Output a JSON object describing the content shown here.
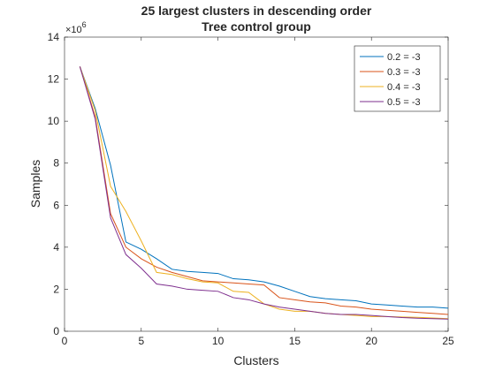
{
  "chart_data": {
    "type": "line",
    "title": "25 largest clusters in descending order",
    "subtitle": "Tree control group",
    "xlabel": "Clusters",
    "ylabel": "Samples",
    "exponent_label": "×10",
    "exponent_power": "6",
    "xlim": [
      0,
      25
    ],
    "ylim": [
      0,
      14
    ],
    "x_ticks": [
      "0",
      "5",
      "10",
      "15",
      "20",
      "25"
    ],
    "y_ticks": [
      "0",
      "2",
      "4",
      "6",
      "8",
      "10",
      "12",
      "14"
    ],
    "grid": false,
    "legend_position": "top-right",
    "x": [
      1,
      2,
      3,
      4,
      5,
      6,
      7,
      8,
      9,
      10,
      11,
      12,
      13,
      14,
      15,
      16,
      17,
      18,
      19,
      20,
      21,
      22,
      23,
      24,
      25
    ],
    "series": [
      {
        "name": "0.2 = -3",
        "color": "#0072BD",
        "values": [
          12.6,
          10.6,
          7.9,
          4.25,
          3.9,
          3.45,
          2.95,
          2.85,
          2.8,
          2.75,
          2.5,
          2.45,
          2.35,
          2.15,
          1.9,
          1.65,
          1.55,
          1.5,
          1.45,
          1.3,
          1.25,
          1.2,
          1.15,
          1.15,
          1.1
        ]
      },
      {
        "name": "0.3 = -3",
        "color": "#D95319",
        "values": [
          12.6,
          10.2,
          5.6,
          4.0,
          3.45,
          3.05,
          2.8,
          2.6,
          2.4,
          2.35,
          2.3,
          2.25,
          2.2,
          1.6,
          1.5,
          1.4,
          1.35,
          1.2,
          1.15,
          1.05,
          1.0,
          0.95,
          0.9,
          0.85,
          0.8
        ]
      },
      {
        "name": "0.4 = -3",
        "color": "#EDB120",
        "values": [
          12.6,
          10.5,
          6.9,
          5.7,
          4.3,
          2.8,
          2.7,
          2.5,
          2.35,
          2.3,
          1.9,
          1.85,
          1.3,
          1.05,
          0.95,
          0.95,
          0.85,
          0.8,
          0.75,
          0.7,
          0.7,
          0.68,
          0.66,
          0.63,
          0.6
        ]
      },
      {
        "name": "0.5 = -3",
        "color": "#7E2F8E",
        "values": [
          12.6,
          10.1,
          5.4,
          3.65,
          3.0,
          2.25,
          2.15,
          2.0,
          1.95,
          1.9,
          1.6,
          1.5,
          1.3,
          1.15,
          1.05,
          0.95,
          0.85,
          0.8,
          0.8,
          0.75,
          0.7,
          0.65,
          0.62,
          0.6,
          0.58
        ]
      }
    ]
  }
}
